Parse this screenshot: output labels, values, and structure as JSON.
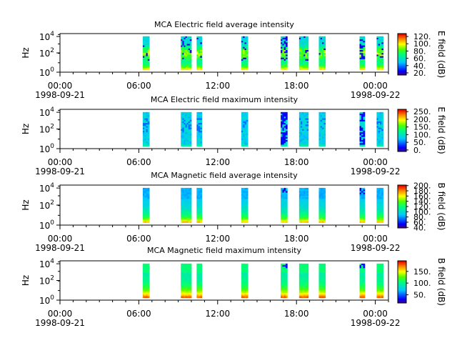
{
  "time_axis": {
    "ticks": [
      "00:00",
      "06:00",
      "12:00",
      "18:00",
      "00:00"
    ],
    "start_date": "1998-09-21",
    "end_date": "1998-09-22",
    "range_hours": [
      0,
      25
    ]
  },
  "bursts_hours": [
    [
      6.3,
      6.8
    ],
    [
      9.2,
      10.0
    ],
    [
      10.4,
      10.8
    ],
    [
      13.8,
      14.3
    ],
    [
      16.8,
      17.3
    ],
    [
      18.2,
      18.9
    ],
    [
      19.7,
      20.2
    ],
    [
      22.8,
      23.2
    ],
    [
      24.1,
      24.6
    ]
  ],
  "chart_data": [
    {
      "type": "heatmap",
      "title": "MCA  Electric field average intensity",
      "ylabel": "Hz",
      "y_scale": "log",
      "y_tick_labels": [
        {
          "base": "10",
          "exp": "0"
        },
        {
          "base": "10",
          "exp": "2"
        },
        {
          "base": "10",
          "exp": "4"
        }
      ],
      "colorbar": {
        "label": "E field (dB)",
        "ticks": [
          "120.",
          "100.",
          "80.",
          "60.",
          "40.",
          "20."
        ],
        "range": [
          14,
          128
        ]
      },
      "colormap": "rainbow",
      "profile": "e_avg"
    },
    {
      "type": "heatmap",
      "title": "MCA  Electric field maximum intensity",
      "ylabel": "Hz",
      "y_scale": "log",
      "y_tick_labels": [
        {
          "base": "10",
          "exp": "0"
        },
        {
          "base": "10",
          "exp": "2"
        },
        {
          "base": "10",
          "exp": "4"
        }
      ],
      "colorbar": {
        "label": "E field (dB)",
        "ticks": [
          "250.",
          "200.",
          "150.",
          "100.",
          "50.",
          "0."
        ],
        "range": [
          -10,
          265
        ]
      },
      "colormap": "rainbow",
      "profile": "e_max"
    },
    {
      "type": "heatmap",
      "title": "MCA  Magnetic field average intensity",
      "ylabel": "Hz",
      "y_scale": "log",
      "y_tick_labels": [
        {
          "base": "10",
          "exp": "0"
        },
        {
          "base": "10",
          "exp": "2"
        },
        {
          "base": "10",
          "exp": "4"
        }
      ],
      "colorbar": {
        "label": "B field (dB)",
        "ticks": [
          "200.",
          "180.",
          "160.",
          "140.",
          "120.",
          "100.",
          "80.",
          "60.",
          "40."
        ],
        "range": [
          38,
          202
        ]
      },
      "colormap": "rainbow",
      "profile": "b_avg"
    },
    {
      "type": "heatmap",
      "title": "MCA  Magnetic field maximum intensity",
      "ylabel": "Hz",
      "y_scale": "log",
      "y_tick_labels": [
        {
          "base": "10",
          "exp": "0"
        },
        {
          "base": "10",
          "exp": "2"
        },
        {
          "base": "10",
          "exp": "4"
        }
      ],
      "colorbar": {
        "label": "B field (dB)",
        "ticks": [
          "150.",
          "100.",
          "50."
        ],
        "range": [
          15,
          195
        ]
      },
      "colormap": "rainbow",
      "profile": "b_max"
    }
  ]
}
